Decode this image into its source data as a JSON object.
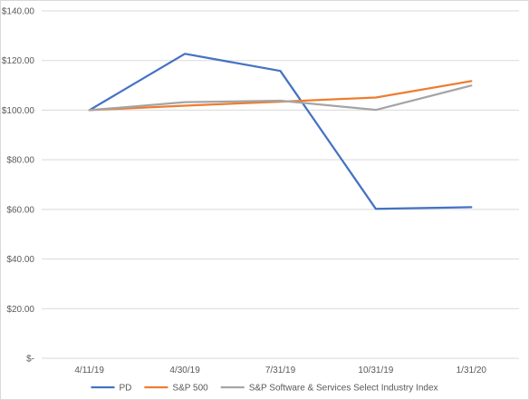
{
  "chart_data": {
    "type": "line",
    "title": "",
    "xlabel": "",
    "ylabel": "",
    "categories": [
      "4/11/19",
      "4/30/19",
      "7/31/19",
      "10/31/19",
      "1/31/20"
    ],
    "series": [
      {
        "name": "PD",
        "color": "#4472C4",
        "values": [
          100.0,
          122.7,
          115.8,
          60.2,
          60.9
        ]
      },
      {
        "name": "S&P 500",
        "color": "#ED7D31",
        "values": [
          100.0,
          101.8,
          103.4,
          105.1,
          111.7
        ]
      },
      {
        "name": "S&P Software & Services Select Industry Index",
        "color": "#A5A5A5",
        "values": [
          100.0,
          103.2,
          103.8,
          100.1,
          109.9
        ]
      }
    ],
    "ylim": [
      0,
      140
    ],
    "y_ticks": [
      0,
      20,
      40,
      60,
      80,
      100,
      120,
      140
    ],
    "y_tick_labels": [
      "$-",
      "$20.00",
      "$40.00",
      "$60.00",
      "$80.00",
      "$100.00",
      "$120.00",
      "$140.00"
    ],
    "grid": true,
    "legend_position": "bottom"
  }
}
